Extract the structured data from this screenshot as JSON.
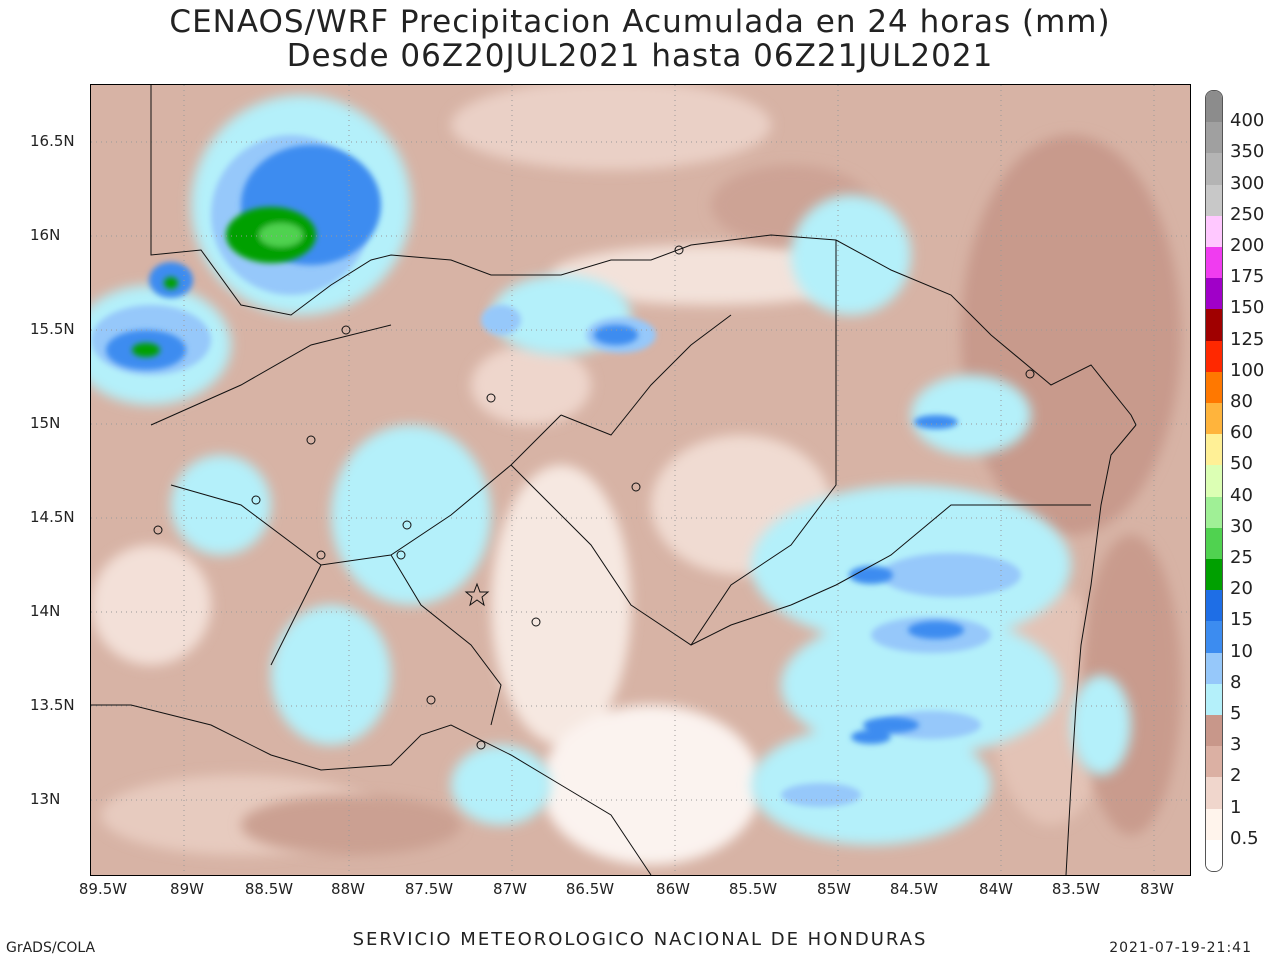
{
  "header": {
    "title_line1": "CENAOS/WRF Precipitacion Acumulada en 24 horas (mm)",
    "title_line2": "Desde 06Z20JUL2021 hasta 06Z21JUL2021"
  },
  "axes": {
    "lat_labels": [
      "16.5N",
      "16N",
      "15.5N",
      "15N",
      "14.5N",
      "14N",
      "13.5N",
      "13N"
    ],
    "lon_labels": [
      "89.5W",
      "89W",
      "88.5W",
      "88W",
      "87.5W",
      "87W",
      "86.5W",
      "86W",
      "85.5W",
      "85W",
      "84.5W",
      "84W",
      "83.5W",
      "83W"
    ],
    "lat_range": [
      12.6,
      16.8
    ],
    "lon_range": [
      -89.5,
      -82.8
    ]
  },
  "legend": {
    "levels": [
      "400",
      "350",
      "300",
      "250",
      "200",
      "175",
      "150",
      "125",
      "100",
      "80",
      "60",
      "50",
      "40",
      "30",
      "25",
      "20",
      "15",
      "10",
      "8",
      "5",
      "3",
      "2",
      "1",
      "0.5"
    ],
    "colors": [
      "#8c8c8c",
      "#a0a0a0",
      "#b4b4b4",
      "#c8c8c8",
      "#ffc8ff",
      "#f03cf0",
      "#a000c8",
      "#a00000",
      "#ff2800",
      "#ff7800",
      "#ffb43c",
      "#fff096",
      "#dcffb4",
      "#a0f096",
      "#50d250",
      "#00a000",
      "#1e6ee6",
      "#3c8cf0",
      "#96c8fa",
      "#b4f0fa",
      "#c8978a",
      "#dbb0a3",
      "#f0d6cc",
      "#fff4ec",
      "#ffffff"
    ]
  },
  "footer": {
    "credit_left": "GrADS/COLA",
    "agency": "SERVICIO METEOROLOGICO NACIONAL DE HONDURAS",
    "timestamp": "2021-07-19-21:41"
  }
}
